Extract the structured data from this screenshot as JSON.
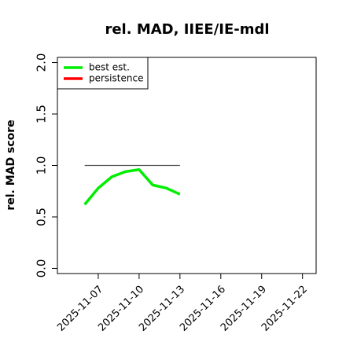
{
  "chart_data": {
    "type": "line",
    "title": "rel. MAD, IIEE/IE-mdl",
    "y_label": "rel. MAD score",
    "x": [
      "2025-11-06",
      "2025-11-07",
      "2025-11-08",
      "2025-11-09",
      "2025-11-10",
      "2025-11-11",
      "2025-11-12",
      "2025-11-13"
    ],
    "series": [
      {
        "name": "best est.",
        "color": "#00ee00",
        "values": [
          0.62,
          0.78,
          0.89,
          0.94,
          0.96,
          0.81,
          0.78,
          0.72
        ]
      },
      {
        "name": "persistence",
        "color": "#ff0000",
        "values": [
          null,
          null,
          null,
          null,
          null,
          null,
          null,
          null
        ]
      }
    ],
    "reference_line": {
      "value": 1,
      "color": "#555555",
      "x": [
        "2025-11-06",
        "2025-11-13"
      ]
    },
    "xlim": [
      "2025-11-04",
      "2025-11-23"
    ],
    "xticks": [
      "2025-11-07",
      "2025-11-10",
      "2025-11-13",
      "2025-11-16",
      "2025-11-19",
      "2025-11-22"
    ],
    "ylim": [
      -0.05,
      2.05
    ],
    "yticks": [
      {
        "value": 0,
        "label": "0.0"
      },
      {
        "value": 0.5,
        "label": "0.5"
      },
      {
        "value": 1,
        "label": "1.0"
      },
      {
        "value": 1.5,
        "label": "1.5"
      },
      {
        "value": 2,
        "label": "2.0"
      }
    ],
    "legend": "top-left"
  }
}
